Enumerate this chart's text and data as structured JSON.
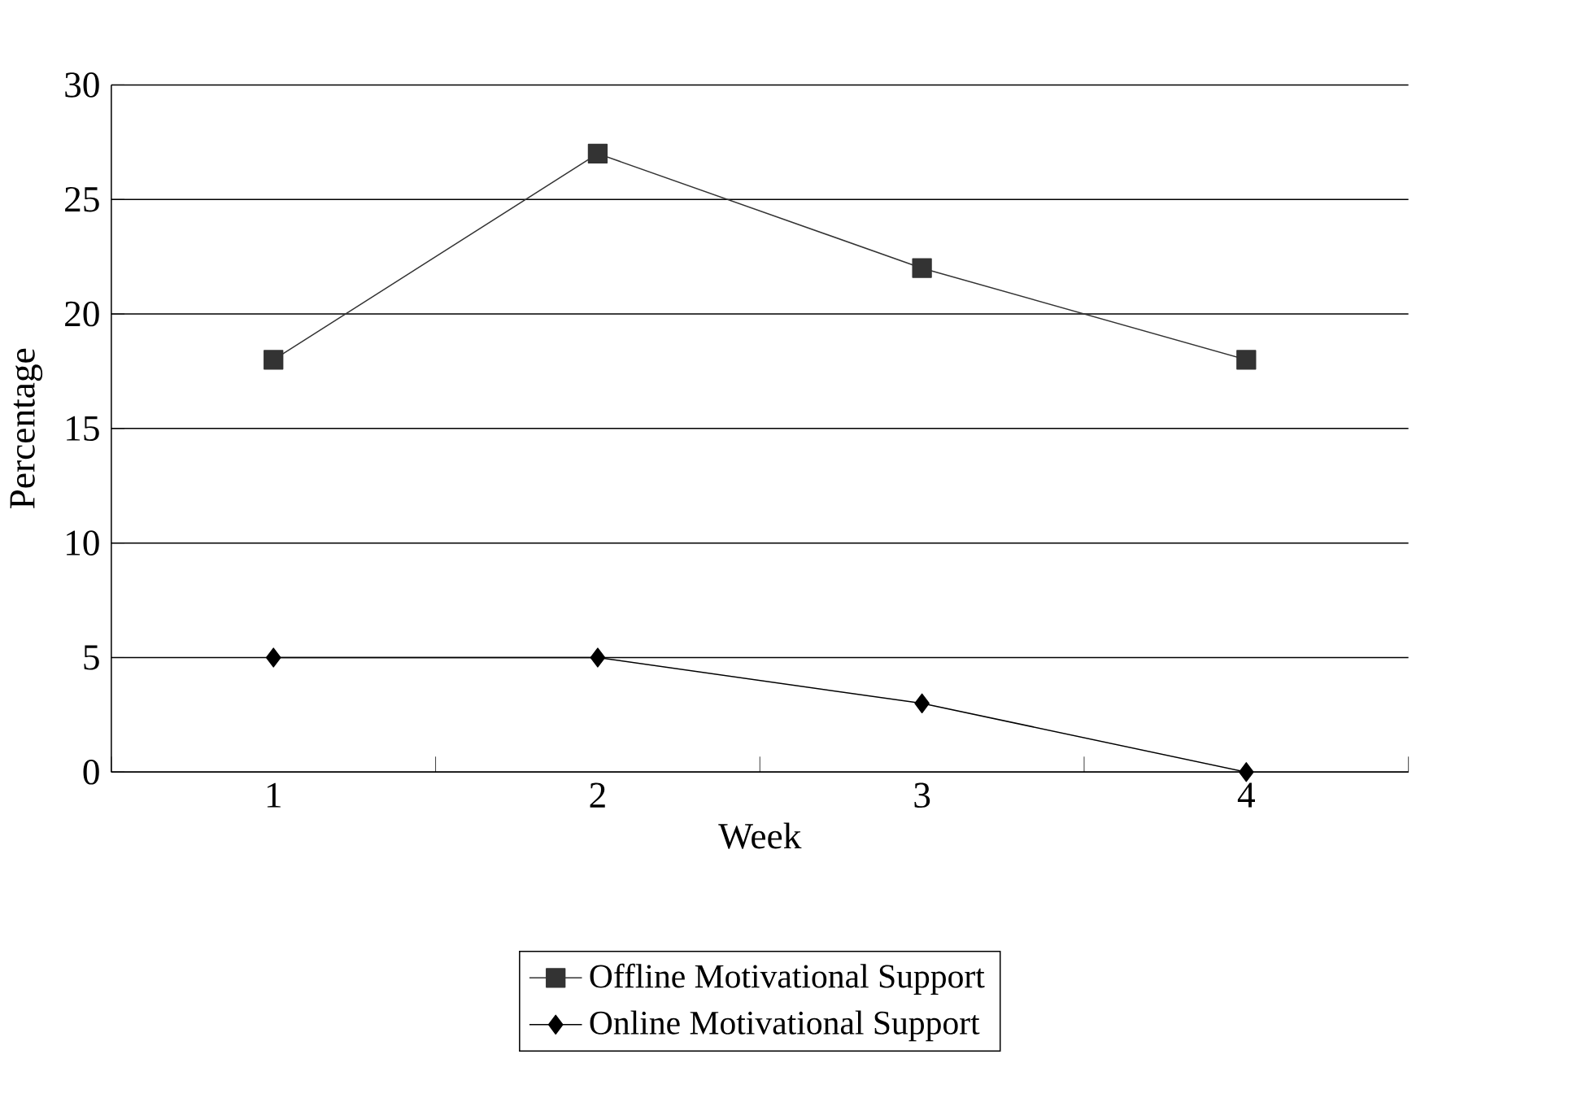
{
  "chart_data": {
    "type": "line",
    "xlabel": "Week",
    "ylabel": "Percentage",
    "categories": [
      "1",
      "2",
      "3",
      "4"
    ],
    "series": [
      {
        "name": "Offline Motivational Support",
        "color": "#333333",
        "marker": "square",
        "values": [
          18,
          27,
          22,
          18
        ]
      },
      {
        "name": "Online Motivational Support",
        "color": "#000000",
        "marker": "diamond",
        "values": [
          5,
          5,
          3,
          0
        ]
      }
    ],
    "ylim": [
      0,
      30
    ],
    "yticks": [
      0,
      5,
      10,
      15,
      20,
      25,
      30
    ],
    "grid": "y",
    "legend": "bottom",
    "line_style": "solid"
  }
}
